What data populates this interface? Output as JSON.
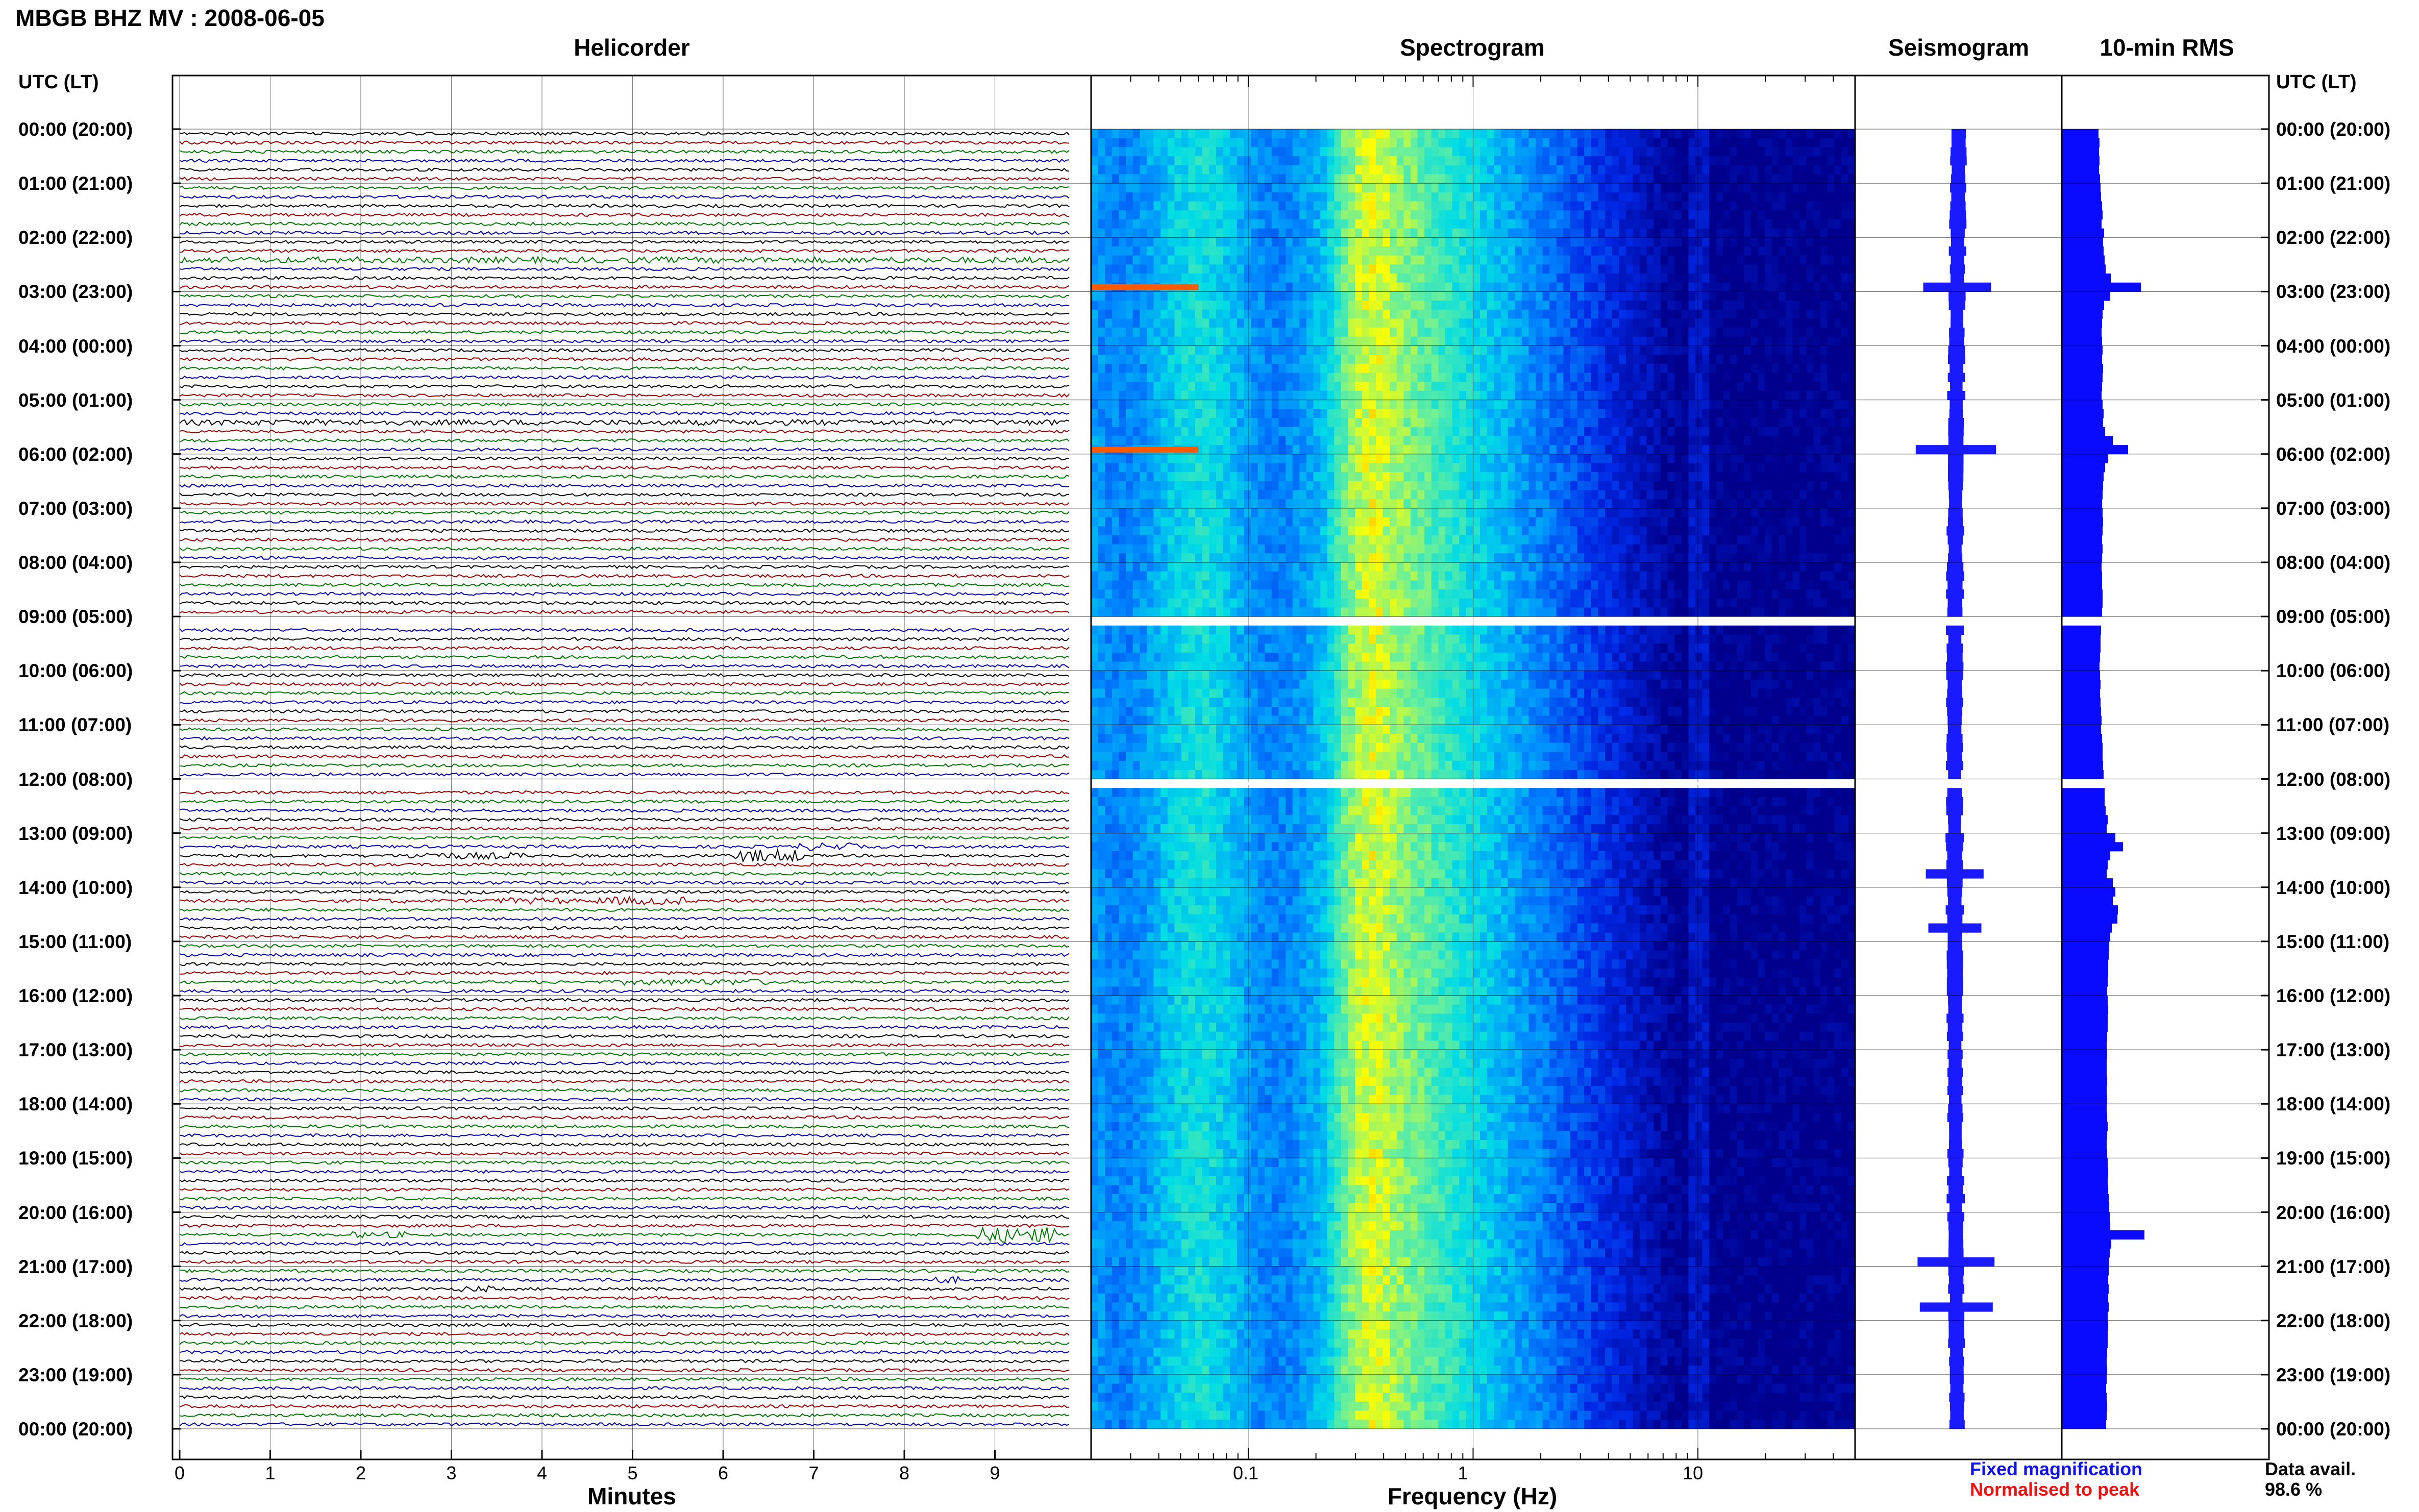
{
  "header": {
    "station_title": "MBGB BHZ MV : 2008-06-05",
    "utc_lt_label_left": "UTC (LT)",
    "utc_lt_label_right": "UTC (LT)"
  },
  "panels": {
    "helicorder_title": "Helicorder",
    "spectrogram_title": "Spectrogram",
    "seismogram_title": "Seismogram",
    "rms_title": "10-min RMS"
  },
  "legend": {
    "fixed_magnification": "Fixed magnification",
    "normalised_to_peak": "Normalised to peak",
    "fixed_color": "#1111ee",
    "normalised_color": "#ee1111"
  },
  "data_availability": {
    "label": "Data avail.",
    "value": "98.6 %"
  },
  "colors": {
    "trace_colors": [
      "#000000",
      "#990000",
      "#007700",
      "#0000aa"
    ],
    "seismogram_fill": "#1a1aff",
    "rms_fill": "#0a0aff",
    "spectro_low": "#00008b",
    "spectro_high": "#ffff00"
  },
  "chart_data": [
    {
      "type": "line",
      "name": "helicorder",
      "xlabel": "Minutes",
      "x_ticks": [
        "0",
        "1",
        "2",
        "3",
        "4",
        "5",
        "6",
        "7",
        "8",
        "9"
      ],
      "xlim": [
        0,
        10
      ],
      "row_count": 144,
      "gaps_at_rows": [
        54,
        72
      ],
      "events": [
        {
          "row": 14,
          "start_min": 0,
          "end_min": 10,
          "amp": 2.0
        },
        {
          "row": 32,
          "start_min": 0,
          "end_min": 10,
          "amp": 1.8
        },
        {
          "row": 79,
          "start_min": 6.8,
          "end_min": 7.5,
          "amp": 2.5
        },
        {
          "row": 80,
          "start_min": 2.5,
          "end_min": 3.8,
          "amp": 2.2
        },
        {
          "row": 80,
          "start_min": 6.1,
          "end_min": 6.9,
          "amp": 4.0
        },
        {
          "row": 84,
          "start_min": 3.0,
          "end_min": 3.4,
          "amp": 1.5
        },
        {
          "row": 85,
          "start_min": 2.1,
          "end_min": 2.5,
          "amp": 1.5
        },
        {
          "row": 85,
          "start_min": 3.5,
          "end_min": 4.4,
          "amp": 2.0
        },
        {
          "row": 85,
          "start_min": 4.6,
          "end_min": 5.6,
          "amp": 2.6
        },
        {
          "row": 94,
          "start_min": 4.9,
          "end_min": 6.5,
          "amp": 2.0
        },
        {
          "row": 122,
          "start_min": 1.9,
          "end_min": 2.5,
          "amp": 2.0
        },
        {
          "row": 122,
          "start_min": 8.8,
          "end_min": 9.7,
          "amp": 5.0
        },
        {
          "row": 128,
          "start_min": 3.1,
          "end_min": 3.5,
          "amp": 2.0
        },
        {
          "row": 127,
          "start_min": 8.3,
          "end_min": 8.6,
          "amp": 2.2
        }
      ]
    },
    {
      "type": "heatmap",
      "name": "spectrogram",
      "xlabel": "Frequency (Hz)",
      "x_scale": "log",
      "xlim": [
        0.02,
        50
      ],
      "x_ticks": [
        "0.1",
        "1",
        "10"
      ],
      "peak_band_hz": [
        0.25,
        0.5
      ],
      "gaps_at_rows": [
        54,
        72
      ],
      "highlights": [
        {
          "row": 17,
          "fmin": 0.02,
          "fmax": 0.06,
          "level": "red"
        },
        {
          "row": 35,
          "fmin": 0.02,
          "fmax": 0.06,
          "level": "red"
        }
      ]
    },
    {
      "type": "area",
      "name": "seismogram",
      "spikes_at_rows": [
        17,
        35,
        82,
        88,
        125,
        130
      ]
    },
    {
      "type": "bar",
      "name": "10-min RMS",
      "values_relative": [
        0.72,
        0.74,
        0.73,
        0.74,
        0.73,
        0.75,
        0.76,
        0.77,
        0.79,
        0.8,
        0.78,
        0.83,
        0.81,
        0.82,
        0.84,
        0.86,
        0.96,
        1.55,
        0.95,
        0.83,
        0.8,
        0.79,
        0.78,
        0.79,
        0.8,
        0.79,
        0.81,
        0.8,
        0.79,
        0.78,
        0.8,
        0.82,
        0.81,
        0.85,
        1.0,
        1.3,
        0.91,
        0.85,
        0.82,
        0.81,
        0.8,
        0.79,
        0.8,
        0.81,
        0.8,
        0.79,
        0.8,
        0.79,
        0.78,
        0.79,
        0.79,
        0.8,
        0.8,
        0.79,
        null,
        0.77,
        0.76,
        0.76,
        0.75,
        0.74,
        0.75,
        0.76,
        0.75,
        0.76,
        0.77,
        0.78,
        0.77,
        0.79,
        0.8,
        0.8,
        0.81,
        0.82,
        0.83,
        0.84,
        0.84,
        0.86,
        0.9,
        0.88,
        1.05,
        1.2,
        0.95,
        0.9,
        0.88,
        1.0,
        1.05,
        1.0,
        1.1,
        1.09,
        0.98,
        0.95,
        0.93,
        0.92,
        0.91,
        0.91,
        0.9,
        0.89,
        0.9,
        0.91,
        0.9,
        0.9,
        0.89,
        0.88,
        0.89,
        0.88,
        0.88,
        0.89,
        0.88,
        0.89,
        0.88,
        0.89,
        0.9,
        0.89,
        0.88,
        0.89,
        0.9,
        0.91,
        0.9,
        0.91,
        0.92,
        0.93,
        0.94,
        0.95,
        1.62,
        0.97,
        0.94,
        0.93,
        0.92,
        0.91,
        0.92,
        0.91,
        0.92,
        0.9,
        0.91,
        0.9,
        0.9,
        0.89,
        0.88,
        0.89,
        0.88,
        0.87,
        0.88,
        0.89,
        0.88,
        0.87
      ]
    }
  ],
  "time_rows": [
    {
      "label": "00:00 (20:00)"
    },
    {
      "label": "01:00 (21:00)"
    },
    {
      "label": "02:00 (22:00)"
    },
    {
      "label": "03:00 (23:00)"
    },
    {
      "label": "04:00 (00:00)"
    },
    {
      "label": "05:00 (01:00)"
    },
    {
      "label": "06:00 (02:00)"
    },
    {
      "label": "07:00 (03:00)"
    },
    {
      "label": "08:00 (04:00)"
    },
    {
      "label": "09:00 (05:00)"
    },
    {
      "label": "10:00 (06:00)"
    },
    {
      "label": "11:00 (07:00)"
    },
    {
      "label": "12:00 (08:00)"
    },
    {
      "label": "13:00 (09:00)"
    },
    {
      "label": "14:00 (10:00)"
    },
    {
      "label": "15:00 (11:00)"
    },
    {
      "label": "16:00 (12:00)"
    },
    {
      "label": "17:00 (13:00)"
    },
    {
      "label": "18:00 (14:00)"
    },
    {
      "label": "19:00 (15:00)"
    },
    {
      "label": "20:00 (16:00)"
    },
    {
      "label": "21:00 (17:00)"
    },
    {
      "label": "22:00 (18:00)"
    },
    {
      "label": "23:00 (19:00)"
    },
    {
      "label": "00:00 (20:00)"
    }
  ]
}
